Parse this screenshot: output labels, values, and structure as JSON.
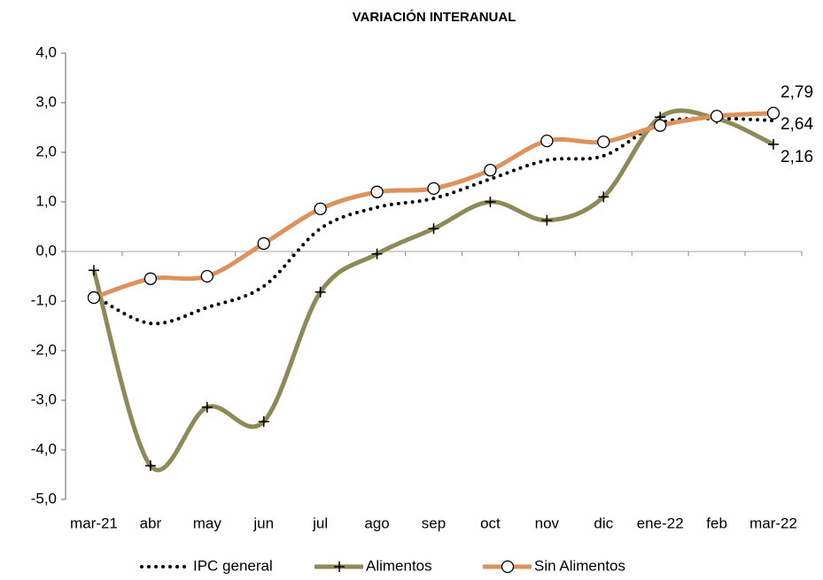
{
  "chart_data": {
    "type": "line",
    "title": "VARIACIÓN INTERANUAL",
    "categories": [
      "mar-21",
      "abr",
      "may",
      "jun",
      "jul",
      "ago",
      "sep",
      "oct",
      "nov",
      "dic",
      "ene-22",
      "feb",
      "mar-22"
    ],
    "ylim": [
      -5,
      4
    ],
    "yticks": [
      {
        "value": -5,
        "label": "-5,0"
      },
      {
        "value": -4,
        "label": "-4,0"
      },
      {
        "value": -3,
        "label": "-3,0"
      },
      {
        "value": -2,
        "label": "-2,0"
      },
      {
        "value": -1,
        "label": "-1,0"
      },
      {
        "value": 0,
        "label": "0,0"
      },
      {
        "value": 1,
        "label": "1,0"
      },
      {
        "value": 2,
        "label": "2,0"
      },
      {
        "value": 3,
        "label": "3,0"
      },
      {
        "value": 4,
        "label": "4,0"
      }
    ],
    "grid": false,
    "series": [
      {
        "name": "IPC general",
        "color": "#000000",
        "style": "dotted",
        "label_color": "#000000",
        "values": [
          -0.89,
          -1.45,
          -1.13,
          -0.7,
          0.46,
          0.89,
          1.07,
          1.46,
          1.84,
          1.93,
          2.59,
          2.68,
          2.64
        ],
        "value_labels": [
          null,
          null,
          null,
          null,
          null,
          null,
          null,
          null,
          null,
          null,
          null,
          null,
          "2,64"
        ]
      },
      {
        "name": "Alimentos",
        "color": "#8c8a56",
        "marker": "plus",
        "label_color": "#7a7a48",
        "values": [
          -0.38,
          -4.32,
          -3.14,
          -3.43,
          -0.82,
          -0.05,
          0.46,
          1.0,
          0.63,
          1.1,
          2.71,
          2.68,
          2.16
        ],
        "value_labels": [
          null,
          null,
          null,
          null,
          null,
          null,
          null,
          null,
          null,
          null,
          null,
          null,
          "2,16"
        ]
      },
      {
        "name": "Sin Alimentos",
        "color": "#dd925e",
        "marker": "circle",
        "label_color": "#e8772a",
        "values": [
          -0.93,
          -0.55,
          -0.5,
          0.16,
          0.86,
          1.2,
          1.27,
          1.64,
          2.23,
          2.21,
          2.54,
          2.73,
          2.79
        ],
        "value_labels": [
          null,
          null,
          null,
          null,
          null,
          null,
          null,
          null,
          null,
          null,
          null,
          null,
          "2,79"
        ]
      }
    ]
  }
}
